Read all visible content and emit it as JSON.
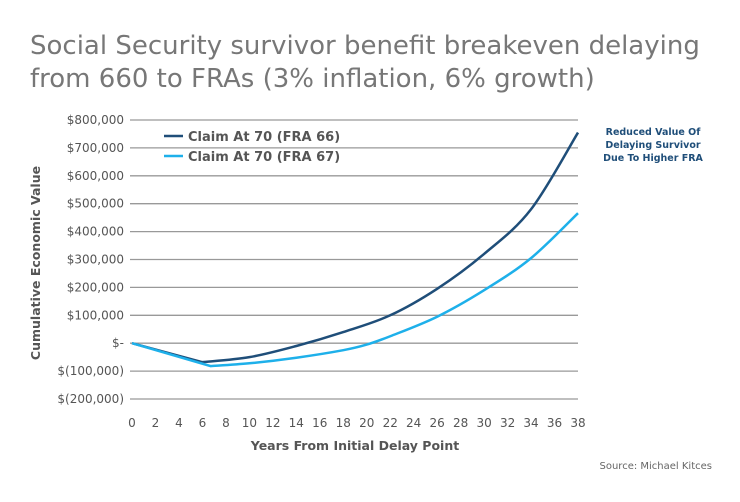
{
  "title_line1": "Social Security survivor benefit breakeven delaying",
  "title_line2": "from 660 to FRAs (3% inflation, 6% growth)",
  "annotation": [
    "Reduced Value Of",
    "Delaying Survivor",
    "Due To Higher FRA"
  ],
  "source": "Source: Michael Kitces",
  "chart_data": {
    "type": "line",
    "xlabel": "Years From Initial Delay Point",
    "ylabel": "Cumulative Economic Value",
    "xlim": [
      0,
      38
    ],
    "ylim": [
      -200000,
      800000
    ],
    "x_ticks": [
      "0",
      "2",
      "4",
      "6",
      "8",
      "10",
      "12",
      "14",
      "16",
      "18",
      "20",
      "22",
      "24",
      "26",
      "28",
      "30",
      "32",
      "34",
      "36",
      "38"
    ],
    "y_ticks": [
      {
        "value": 800000,
        "label": "$800,000"
      },
      {
        "value": 700000,
        "label": "$700,000"
      },
      {
        "value": 600000,
        "label": "$600,000"
      },
      {
        "value": 500000,
        "label": "$500,000"
      },
      {
        "value": 400000,
        "label": "$400,000"
      },
      {
        "value": 300000,
        "label": "$300,000"
      },
      {
        "value": 200000,
        "label": "$200,000"
      },
      {
        "value": 100000,
        "label": "$100,000"
      },
      {
        "value": 0,
        "label": "$-"
      },
      {
        "value": -100000,
        "label": "$(100,000)"
      },
      {
        "value": -200000,
        "label": "$(200,000)"
      }
    ],
    "grid": "horizontal",
    "legend": "top-left",
    "series": [
      {
        "name": "Claim At 70 (FRA 66)",
        "color": "#1f4e79",
        "x": [
          0,
          6,
          10,
          14,
          18,
          22,
          26,
          30,
          34,
          38
        ],
        "y": [
          0,
          -68000,
          -50000,
          -10000,
          40000,
          100000,
          195000,
          320000,
          480000,
          755000
        ]
      },
      {
        "name": "Claim At 70 (FRA 67)",
        "color": "#1eb0ea",
        "x": [
          0,
          6.7,
          10,
          14,
          18,
          20,
          22,
          26,
          30,
          34,
          38
        ],
        "y": [
          0,
          -82000,
          -72000,
          -52000,
          -25000,
          -5000,
          25000,
          95000,
          190000,
          305000,
          466000
        ]
      }
    ]
  }
}
